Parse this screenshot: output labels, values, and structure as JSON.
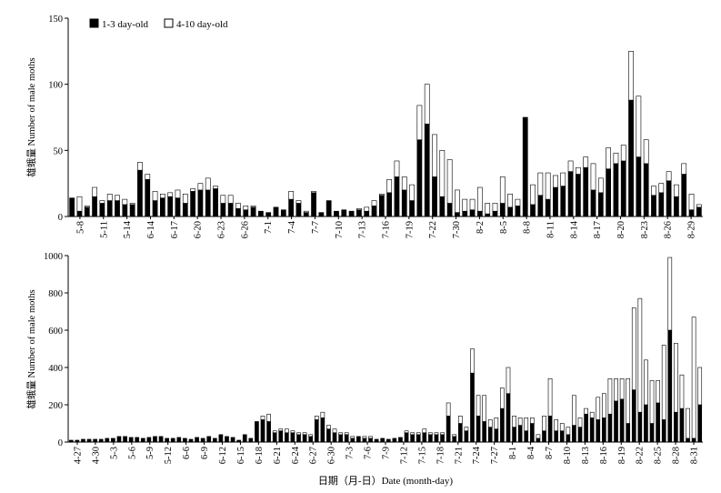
{
  "chart_data": [
    {
      "type": "bar",
      "stacked": true,
      "ylabel": "雄蛾量 Number of male moths",
      "ylim": [
        0,
        150
      ],
      "yticks": [
        0,
        50,
        100,
        150
      ],
      "tick_labels": [
        "5-8",
        "5-11",
        "5-14",
        "6-14",
        "6-17",
        "6-20",
        "6-23",
        "6-26",
        "7-1",
        "7-4",
        "7-7",
        "7-10",
        "7-13",
        "7-16",
        "7-19",
        "7-22",
        "7-30",
        "8-2",
        "8-5",
        "8-8",
        "8-11",
        "8-14",
        "8-17",
        "8-20",
        "8-23",
        "8-26",
        "8-29"
      ],
      "legend": {
        "position": "top-left"
      },
      "series": [
        {
          "name": "1-3 day-old",
          "color": "#000000",
          "values": [
            14,
            4,
            7,
            15,
            10,
            12,
            12,
            9,
            9,
            35,
            28,
            12,
            14,
            15,
            14,
            10,
            19,
            20,
            20,
            21,
            10,
            10,
            6,
            5,
            7,
            4,
            3,
            7,
            5,
            13,
            10,
            3,
            18,
            3,
            12,
            4,
            5,
            4,
            5,
            4,
            8,
            16,
            18,
            30,
            20,
            12,
            58,
            70,
            30,
            15,
            10,
            3,
            4,
            5,
            4,
            2,
            4,
            10,
            7,
            8,
            75,
            9,
            16,
            13,
            22,
            23,
            34,
            32,
            37,
            20,
            18,
            36,
            40,
            42,
            88,
            45,
            40,
            16,
            18,
            27,
            15,
            32,
            5,
            7
          ]
        },
        {
          "name": "4-10 day-old",
          "color": "#ffffff",
          "values": [
            0,
            11,
            1,
            7,
            2,
            5,
            4,
            4,
            1,
            6,
            4,
            7,
            3,
            3,
            6,
            7,
            2,
            5,
            9,
            2,
            6,
            6,
            4,
            3,
            1,
            0,
            0,
            0,
            0,
            6,
            2,
            1,
            1,
            0,
            0,
            0,
            0,
            0,
            1,
            3,
            4,
            1,
            10,
            12,
            10,
            12,
            26,
            30,
            32,
            35,
            33,
            17,
            9,
            8,
            18,
            8,
            6,
            20,
            10,
            5,
            0,
            15,
            17,
            20,
            9,
            10,
            8,
            5,
            8,
            20,
            11,
            16,
            8,
            12,
            37,
            46,
            18,
            7,
            7,
            7,
            9,
            8,
            12,
            2
          ]
        }
      ]
    },
    {
      "type": "bar",
      "stacked": true,
      "ylabel": "雄蛾量 Number of male moths",
      "xlabel": "日期（月-日）Date (month-day)",
      "ylim": [
        0,
        1000
      ],
      "yticks": [
        0,
        200,
        400,
        600,
        800,
        1000
      ],
      "tick_labels": [
        "4-27",
        "4-30",
        "5-3",
        "5-6",
        "5-9",
        "5-12",
        "6-6",
        "6-9",
        "6-12",
        "6-15",
        "6-18",
        "6-21",
        "6-24",
        "6-27",
        "6-30",
        "7-3",
        "7-6",
        "7-9",
        "7-12",
        "7-15",
        "7-18",
        "7-21",
        "7-24",
        "7-27",
        "8-1",
        "8-4",
        "8-7",
        "8-10",
        "8-13",
        "8-16",
        "8-19",
        "8-22",
        "8-25",
        "8-28",
        "8-31"
      ],
      "series": [
        {
          "name": "1-3 day-old",
          "color": "#000000",
          "values": [
            10,
            10,
            15,
            15,
            15,
            15,
            20,
            20,
            30,
            30,
            25,
            25,
            20,
            25,
            30,
            30,
            20,
            20,
            25,
            20,
            15,
            25,
            20,
            30,
            20,
            40,
            30,
            25,
            10,
            40,
            20,
            110,
            120,
            110,
            50,
            60,
            50,
            50,
            40,
            40,
            30,
            120,
            130,
            70,
            50,
            40,
            40,
            20,
            30,
            20,
            20,
            15,
            20,
            15,
            20,
            25,
            50,
            40,
            40,
            50,
            40,
            40,
            40,
            140,
            30,
            100,
            60,
            370,
            140,
            110,
            80,
            70,
            180,
            260,
            80,
            90,
            60,
            100,
            20,
            60,
            140,
            60,
            60,
            40,
            90,
            80,
            150,
            130,
            120,
            130,
            150,
            220,
            230,
            100,
            280,
            160,
            200,
            100,
            210,
            120,
            600,
            160,
            180,
            20,
            20,
            200
          ]
        },
        {
          "name": "4-10 day-old",
          "color": "#ffffff",
          "values": [
            0,
            0,
            0,
            0,
            0,
            0,
            0,
            0,
            0,
            0,
            0,
            0,
            0,
            0,
            0,
            0,
            0,
            0,
            0,
            0,
            0,
            0,
            0,
            0,
            0,
            0,
            0,
            0,
            0,
            0,
            0,
            0,
            20,
            40,
            10,
            10,
            20,
            10,
            10,
            10,
            10,
            20,
            30,
            20,
            20,
            10,
            10,
            10,
            0,
            10,
            10,
            0,
            0,
            0,
            0,
            0,
            10,
            10,
            10,
            20,
            10,
            10,
            10,
            70,
            10,
            40,
            20,
            130,
            110,
            140,
            40,
            60,
            110,
            140,
            60,
            40,
            70,
            30,
            20,
            80,
            200,
            60,
            40,
            40,
            160,
            50,
            30,
            30,
            120,
            130,
            190,
            120,
            110,
            240,
            440,
            610,
            240,
            230,
            120,
            400,
            390,
            370,
            180,
            160,
            650,
            200
          ]
        }
      ]
    }
  ]
}
